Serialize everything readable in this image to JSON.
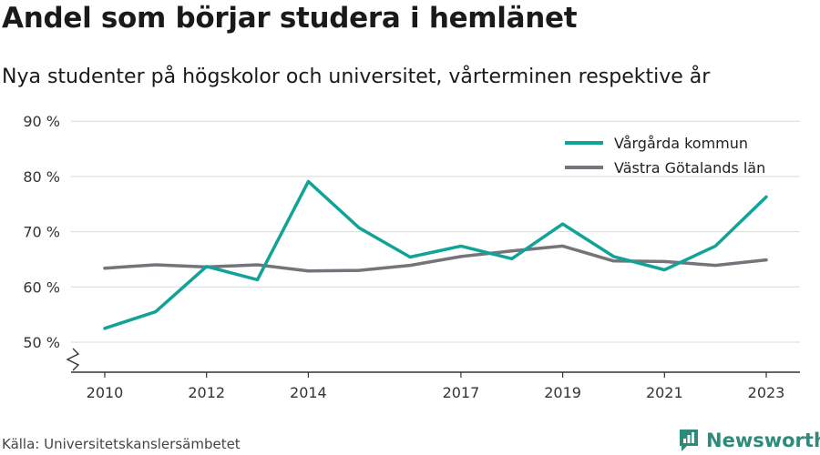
{
  "title": "Andel som börjar studera i hemlänet",
  "subtitle": "Nya studenter på högskolor och universitet, vårterminen respektive år",
  "source": "Källa: Universitetskanslersämbetet",
  "brand": "Newsworthy",
  "chart_data": {
    "type": "line",
    "title": "Andel som börjar studera i hemlänet",
    "subtitle": "Nya studenter på högskolor och universitet, vårterminen respektive år",
    "xlabel": "",
    "ylabel": "",
    "x": [
      2010,
      2011,
      2012,
      2013,
      2014,
      2015,
      2016,
      2017,
      2018,
      2019,
      2020,
      2021,
      2022,
      2023
    ],
    "x_ticks": [
      2010,
      2012,
      2014,
      2017,
      2019,
      2021,
      2023
    ],
    "y_ticks": [
      50,
      60,
      70,
      80,
      90
    ],
    "y_tick_labels": [
      "50 %",
      "60 %",
      "70 %",
      "80 %",
      "90 %"
    ],
    "ylim": [
      45,
      90
    ],
    "y_axis_break": true,
    "grid": "horizontal",
    "legend_position": "top-right",
    "series": [
      {
        "name": "Vårgårda kommun",
        "color": "#11a398",
        "values": [
          52.5,
          55.5,
          63.7,
          61.3,
          79.1,
          70.7,
          65.4,
          67.4,
          65.1,
          71.4,
          65.5,
          63.1,
          67.4,
          76.3
        ]
      },
      {
        "name": "Västra Götalands län",
        "color": "#76737a",
        "values": [
          63.4,
          64.0,
          63.6,
          64.0,
          62.9,
          63.0,
          63.9,
          65.5,
          66.5,
          67.4,
          64.7,
          64.6,
          63.9,
          64.9
        ]
      }
    ]
  }
}
